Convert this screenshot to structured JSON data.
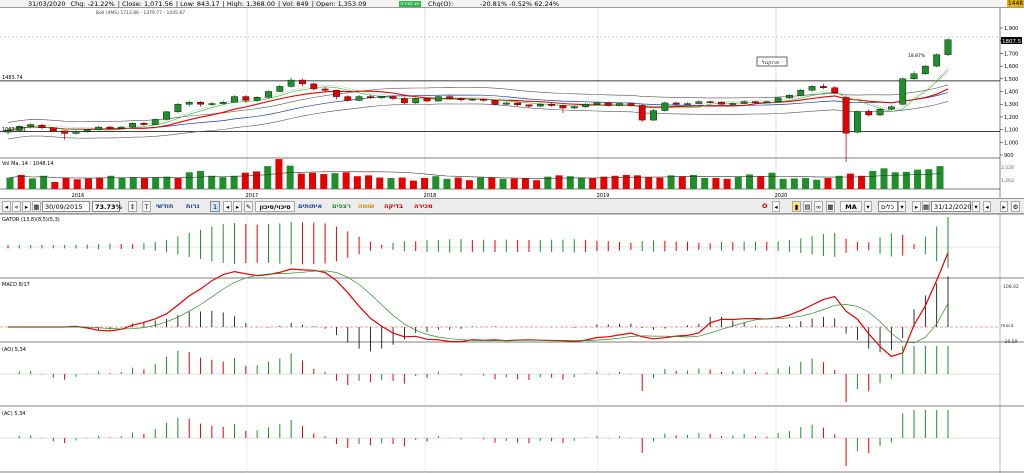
{
  "topbar": {
    "date": "31/03/2020",
    "chg": "Chg: -21.22%",
    "close": "Close: 1,071.56",
    "low": "Low: 843.17",
    "high": "High: 1,368.00",
    "vol": "Vol: 849",
    "open": "Open: 1,353.09",
    "badge": "אג סגירה",
    "chg_o": "Chg(O):",
    "chg_vals": "-20.81%  -0.52%  62.24%",
    "last": "1448"
  },
  "indicator_text": "Boll (4MS) 1713.86 - 1379.77 - 1045.87",
  "price_labels": {
    "left_top": "1483.74",
    "left_bottom": "1083.771",
    "right_current": "1807.5",
    "pct_annot": "18.87%",
    "callout": "פרוקטל"
  },
  "price_axis": [
    "1,900",
    "1,800",
    "1,700",
    "1,600",
    "1,500",
    "1,400",
    "1,300",
    "1,200",
    "1,100",
    "1,000",
    "900"
  ],
  "year_labels": [
    "2016",
    "2017",
    "2018",
    "2019",
    "2020"
  ],
  "volume": {
    "title": "Vol Ma. 14 : 1048.14",
    "axis_top": "2,526",
    "axis_mid": "1,263",
    "colors": [
      "g",
      "r",
      "g",
      "g",
      "r",
      "r",
      "r",
      "r",
      "r",
      "g",
      "g",
      "g",
      "r",
      "g",
      "g",
      "r",
      "g",
      "g",
      "g",
      "g",
      "g",
      "r",
      "r",
      "g",
      "r",
      "g",
      "r",
      "r",
      "r",
      "g",
      "r",
      "r",
      "r",
      "r",
      "g",
      "r",
      "r",
      "r",
      "g",
      "g",
      "r",
      "r",
      "g",
      "r",
      "g",
      "r",
      "r",
      "r",
      "g",
      "r",
      "g",
      "g",
      "r",
      "r",
      "r",
      "r",
      "r",
      "r",
      "r",
      "g",
      "r",
      "g",
      "g",
      "r",
      "r",
      "g",
      "g",
      "r",
      "g",
      "g",
      "g",
      "g",
      "g",
      "r",
      "g",
      "r",
      "r",
      "g",
      "g",
      "g",
      "g",
      "g",
      "g",
      "g"
    ],
    "values": [
      2.6,
      3.2,
      2.4,
      3.0,
      1.6,
      2.5,
      2.2,
      2.4,
      2.6,
      3.0,
      2.5,
      2.7,
      2.6,
      2.7,
      2.8,
      2.6,
      3.8,
      4.1,
      3.0,
      2.7,
      3.0,
      3.7,
      4.0,
      5.2,
      6.8,
      5.3,
      3.5,
      3.7,
      3.4,
      3.6,
      3.8,
      2.9,
      3.1,
      2.6,
      2.5,
      2.6,
      1.9,
      2.5,
      2.9,
      2.3,
      2.6,
      2.0,
      2.6,
      2.6,
      2.3,
      2.4,
      2.4,
      2.0,
      2.8,
      3.1,
      2.9,
      2.6,
      2.5,
      2.8,
      3.0,
      3.2,
      3.1,
      2.7,
      2.6,
      3.1,
      2.9,
      3.2,
      2.5,
      2.5,
      2.3,
      2.8,
      3.3,
      2.9,
      3.7,
      2.3,
      2.4,
      2.5,
      2.1,
      2.5,
      3.0,
      3.5,
      3.0,
      4.1,
      4.7,
      3.8,
      3.9,
      4.4,
      4.5,
      5.2
    ]
  },
  "toolbar": {
    "from_date": "30/09/2015",
    "zoom": "73.73%",
    "T": "T",
    "monthly": "חודשי",
    "trades": "נרות",
    "one": "1",
    "tabs": [
      "סיכוי/סיכון",
      "איתותים",
      "רצפים",
      "שומה",
      "בדיקה",
      "מכירה"
    ],
    "O": "O",
    "MA": "MA",
    "all": "כלים",
    "to_date": "31/12/2020"
  },
  "panels": {
    "gator": "GATOR (13,8)(8,5)(5,3)",
    "macd": "MACD 8/17",
    "macd_axis_top": "108.02",
    "macd_axis_bot": "-29.59",
    "macd_label": "macd",
    "ao": "(AO) 5,34",
    "ac": "(AC) 5,34"
  },
  "chart_data": {
    "type": "candlestick",
    "title": "",
    "x_range": [
      "2015-10",
      "2020-12"
    ],
    "y_range": [
      900,
      1950
    ],
    "candles": [
      {
        "o": 1080,
        "c": 1095,
        "h": 1110,
        "l": 1060
      },
      {
        "o": 1095,
        "c": 1125,
        "h": 1135,
        "l": 1085
      },
      {
        "o": 1125,
        "c": 1140,
        "h": 1150,
        "l": 1110
      },
      {
        "o": 1135,
        "c": 1115,
        "h": 1145,
        "l": 1100
      },
      {
        "o": 1115,
        "c": 1090,
        "h": 1120,
        "l": 1080
      },
      {
        "o": 1090,
        "c": 1070,
        "h": 1095,
        "l": 1020
      },
      {
        "o": 1070,
        "c": 1085,
        "h": 1095,
        "l": 1060
      },
      {
        "o": 1085,
        "c": 1100,
        "h": 1108,
        "l": 1075
      },
      {
        "o": 1100,
        "c": 1120,
        "h": 1128,
        "l": 1095
      },
      {
        "o": 1120,
        "c": 1110,
        "h": 1130,
        "l": 1100
      },
      {
        "o": 1110,
        "c": 1120,
        "h": 1128,
        "l": 1105
      },
      {
        "o": 1120,
        "c": 1150,
        "h": 1158,
        "l": 1110
      },
      {
        "o": 1150,
        "c": 1140,
        "h": 1160,
        "l": 1130
      },
      {
        "o": 1140,
        "c": 1180,
        "h": 1190,
        "l": 1135
      },
      {
        "o": 1180,
        "c": 1240,
        "h": 1248,
        "l": 1175
      },
      {
        "o": 1240,
        "c": 1300,
        "h": 1310,
        "l": 1230
      },
      {
        "o": 1300,
        "c": 1315,
        "h": 1330,
        "l": 1280
      },
      {
        "o": 1315,
        "c": 1300,
        "h": 1325,
        "l": 1280
      },
      {
        "o": 1300,
        "c": 1305,
        "h": 1320,
        "l": 1290
      },
      {
        "o": 1305,
        "c": 1315,
        "h": 1330,
        "l": 1295
      },
      {
        "o": 1315,
        "c": 1360,
        "h": 1370,
        "l": 1310
      },
      {
        "o": 1360,
        "c": 1330,
        "h": 1370,
        "l": 1310
      },
      {
        "o": 1330,
        "c": 1355,
        "h": 1365,
        "l": 1320
      },
      {
        "o": 1355,
        "c": 1400,
        "h": 1410,
        "l": 1345
      },
      {
        "o": 1400,
        "c": 1440,
        "h": 1452,
        "l": 1395
      },
      {
        "o": 1440,
        "c": 1490,
        "h": 1510,
        "l": 1430
      },
      {
        "o": 1490,
        "c": 1460,
        "h": 1500,
        "l": 1440
      },
      {
        "o": 1460,
        "c": 1420,
        "h": 1470,
        "l": 1410
      },
      {
        "o": 1420,
        "c": 1410,
        "h": 1440,
        "l": 1400
      },
      {
        "o": 1410,
        "c": 1360,
        "h": 1415,
        "l": 1340
      },
      {
        "o": 1360,
        "c": 1330,
        "h": 1370,
        "l": 1320
      },
      {
        "o": 1330,
        "c": 1360,
        "h": 1372,
        "l": 1322
      },
      {
        "o": 1360,
        "c": 1350,
        "h": 1375,
        "l": 1340
      },
      {
        "o": 1350,
        "c": 1360,
        "h": 1368,
        "l": 1340
      },
      {
        "o": 1360,
        "c": 1345,
        "h": 1370,
        "l": 1330
      },
      {
        "o": 1345,
        "c": 1310,
        "h": 1355,
        "l": 1300
      },
      {
        "o": 1310,
        "c": 1345,
        "h": 1352,
        "l": 1300
      },
      {
        "o": 1345,
        "c": 1325,
        "h": 1350,
        "l": 1315
      },
      {
        "o": 1325,
        "c": 1360,
        "h": 1370,
        "l": 1320
      },
      {
        "o": 1360,
        "c": 1345,
        "h": 1368,
        "l": 1335
      },
      {
        "o": 1345,
        "c": 1335,
        "h": 1352,
        "l": 1320
      },
      {
        "o": 1335,
        "c": 1340,
        "h": 1350,
        "l": 1325
      },
      {
        "o": 1340,
        "c": 1330,
        "h": 1345,
        "l": 1320
      },
      {
        "o": 1330,
        "c": 1300,
        "h": 1335,
        "l": 1290
      },
      {
        "o": 1300,
        "c": 1310,
        "h": 1322,
        "l": 1292
      },
      {
        "o": 1310,
        "c": 1295,
        "h": 1318,
        "l": 1285
      },
      {
        "o": 1295,
        "c": 1285,
        "h": 1300,
        "l": 1270
      },
      {
        "o": 1285,
        "c": 1300,
        "h": 1308,
        "l": 1278
      },
      {
        "o": 1300,
        "c": 1290,
        "h": 1310,
        "l": 1280
      },
      {
        "o": 1290,
        "c": 1270,
        "h": 1298,
        "l": 1230
      },
      {
        "o": 1270,
        "c": 1280,
        "h": 1290,
        "l": 1262
      },
      {
        "o": 1280,
        "c": 1300,
        "h": 1310,
        "l": 1270
      },
      {
        "o": 1300,
        "c": 1310,
        "h": 1320,
        "l": 1290
      },
      {
        "o": 1310,
        "c": 1290,
        "h": 1318,
        "l": 1280
      },
      {
        "o": 1290,
        "c": 1305,
        "h": 1316,
        "l": 1284
      },
      {
        "o": 1305,
        "c": 1290,
        "h": 1312,
        "l": 1280
      },
      {
        "o": 1290,
        "c": 1175,
        "h": 1300,
        "l": 1160
      },
      {
        "o": 1175,
        "c": 1250,
        "h": 1262,
        "l": 1168
      },
      {
        "o": 1250,
        "c": 1310,
        "h": 1320,
        "l": 1242
      },
      {
        "o": 1310,
        "c": 1300,
        "h": 1318,
        "l": 1290
      },
      {
        "o": 1300,
        "c": 1305,
        "h": 1315,
        "l": 1292
      },
      {
        "o": 1305,
        "c": 1320,
        "h": 1330,
        "l": 1298
      },
      {
        "o": 1320,
        "c": 1315,
        "h": 1330,
        "l": 1305
      },
      {
        "o": 1315,
        "c": 1300,
        "h": 1322,
        "l": 1295
      },
      {
        "o": 1300,
        "c": 1305,
        "h": 1314,
        "l": 1294
      },
      {
        "o": 1305,
        "c": 1320,
        "h": 1330,
        "l": 1298
      },
      {
        "o": 1320,
        "c": 1315,
        "h": 1326,
        "l": 1305
      },
      {
        "o": 1315,
        "c": 1320,
        "h": 1330,
        "l": 1310
      },
      {
        "o": 1320,
        "c": 1350,
        "h": 1358,
        "l": 1315
      },
      {
        "o": 1350,
        "c": 1370,
        "h": 1378,
        "l": 1342
      },
      {
        "o": 1370,
        "c": 1410,
        "h": 1420,
        "l": 1362
      },
      {
        "o": 1410,
        "c": 1440,
        "h": 1450,
        "l": 1400
      },
      {
        "o": 1440,
        "c": 1430,
        "h": 1460,
        "l": 1420
      },
      {
        "o": 1430,
        "c": 1390,
        "h": 1440,
        "l": 1380
      },
      {
        "o": 1353,
        "c": 1072,
        "h": 1368,
        "l": 843
      },
      {
        "o": 1080,
        "c": 1240,
        "h": 1250,
        "l": 1070
      },
      {
        "o": 1240,
        "c": 1215,
        "h": 1260,
        "l": 1205
      },
      {
        "o": 1215,
        "c": 1260,
        "h": 1272,
        "l": 1205
      },
      {
        "o": 1260,
        "c": 1280,
        "h": 1295,
        "l": 1250
      },
      {
        "o": 1300,
        "c": 1500,
        "h": 1510,
        "l": 1290
      },
      {
        "o": 1500,
        "c": 1540,
        "h": 1560,
        "l": 1480
      },
      {
        "o": 1540,
        "c": 1600,
        "h": 1610,
        "l": 1530
      },
      {
        "o": 1600,
        "c": 1690,
        "h": 1700,
        "l": 1590
      },
      {
        "o": 1690,
        "c": 1808,
        "h": 1818,
        "l": 1680
      }
    ],
    "horizontal_lines": [
      1483.74,
      1083.771
    ]
  }
}
